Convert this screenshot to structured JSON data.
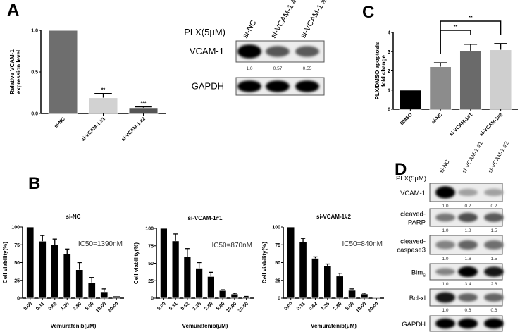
{
  "panels": {
    "a": "A",
    "b": "B",
    "c": "C",
    "d": "D"
  },
  "chart_data": [
    {
      "type": "bar",
      "panel": "A",
      "categories": [
        "si-NC",
        "si-VCAM-1 #1",
        "si-VCAM-1 #2"
      ],
      "values": [
        1.0,
        0.19,
        0.07
      ],
      "errors": [
        0,
        0.05,
        0.01
      ],
      "significance": [
        "",
        "**",
        "***"
      ],
      "ylabel_lines": [
        "Relative VCAM-1",
        "expression level"
      ],
      "ylim": [
        0,
        1.0
      ],
      "yticks": [
        "0.0",
        "0.5",
        "1.0"
      ],
      "ytick_values": [
        0,
        0.5,
        1.0
      ],
      "colors": [
        "#6e6e6e",
        "#d2d2d2",
        "#555555"
      ]
    },
    {
      "type": "bar",
      "panel": "C",
      "categories": [
        "DMSO",
        "si-NC",
        "si-VCAM-1#1",
        "si-VCAM-1#2"
      ],
      "values": [
        1.0,
        2.22,
        3.05,
        3.1
      ],
      "errors": [
        0,
        0.2,
        0.33,
        0.32
      ],
      "significance": [
        "",
        "",
        "",
        ""
      ],
      "comparisons": [
        {
          "from": "si-NC",
          "to": "si-VCAM-1#1",
          "label": "**"
        },
        {
          "from": "si-NC",
          "to": "si-VCAM-1#2",
          "label": "**"
        }
      ],
      "ylabel_lines": [
        "PLX/DMSO apoptosis",
        "fold change"
      ],
      "ylim": [
        0,
        4
      ],
      "yticks": [
        "0",
        "1",
        "2",
        "3",
        "4"
      ],
      "ytick_values": [
        0,
        1,
        2,
        3,
        4
      ],
      "colors": [
        "#000000",
        "#8c8c8c",
        "#6a6a6a",
        "#cfcfcf"
      ]
    },
    {
      "type": "bar",
      "panel": "B",
      "title": "si-NC",
      "annotation": "IC50=1390nM",
      "categories": [
        "0.00",
        "0.31",
        "0.62",
        "1.25",
        "2.50",
        "5.00",
        "10.00",
        "20.00"
      ],
      "values": [
        100,
        80,
        75,
        62,
        40,
        22,
        9,
        3
      ],
      "errors": [
        0,
        8,
        8,
        7,
        10,
        7,
        4,
        0
      ],
      "xlabel": "Vemurafenib(μM)",
      "ylabel_lines": [
        "Cell viability(%)"
      ],
      "ylim": [
        0,
        100
      ],
      "yticks": [
        "0",
        "25",
        "50",
        "75",
        "100"
      ],
      "ytick_values": [
        0,
        25,
        50,
        75,
        100
      ],
      "colors": [
        "#000000"
      ]
    },
    {
      "type": "bar",
      "panel": "B",
      "title": "si-VCAM-1#1",
      "annotation": "IC50=870nM",
      "categories": [
        "0.00",
        "0.31",
        "0.62",
        "1.25",
        "2.50",
        "5.00",
        "10.00",
        "20.00"
      ],
      "values": [
        100,
        82,
        59,
        43,
        31,
        11,
        6,
        2
      ],
      "errors": [
        0,
        10,
        12,
        8,
        6,
        1,
        1,
        0.5
      ],
      "xlabel": "Vemurafenib(μM)",
      "ylabel_lines": [
        "Cell viability(%)"
      ],
      "ylim": [
        0,
        100
      ],
      "yticks": [
        "0",
        "25",
        "50",
        "75",
        "100"
      ],
      "ytick_values": [
        0,
        25,
        50,
        75,
        100
      ],
      "colors": [
        "#000000"
      ]
    },
    {
      "type": "bar",
      "panel": "B",
      "title": "si-VCAM-1#2",
      "annotation": "IC50=840nM",
      "categories": [
        "0.00",
        "0.31",
        "0.62",
        "1.25",
        "2.50",
        "5.00",
        "10.00",
        "20.00"
      ],
      "values": [
        100,
        79,
        56,
        45,
        31,
        11,
        6,
        1
      ],
      "errors": [
        0,
        5,
        2,
        3,
        4,
        2,
        1,
        0
      ],
      "xlabel": "Vemurafenib(μM)",
      "ylabel_lines": [
        "Cell viability(%)"
      ],
      "ylim": [
        0,
        100
      ],
      "yticks": [
        "0",
        "25",
        "50",
        "75",
        "100"
      ],
      "ytick_values": [
        0,
        25,
        50,
        75,
        100
      ],
      "colors": [
        "#000000"
      ]
    }
  ],
  "blot_a": {
    "treatment": "PLX(5μM)",
    "lanes": [
      "si-NC",
      "si-VCAM-1 #1",
      "si-VCAM-1 #2"
    ],
    "rows": [
      {
        "label": "VCAM-1",
        "quant": [
          "1.0",
          "0.57",
          "0.55"
        ],
        "intensity": [
          1.0,
          0.57,
          0.55
        ]
      },
      {
        "label": "GAPDH",
        "quant": [],
        "intensity": [
          1.0,
          1.0,
          1.0
        ]
      }
    ]
  },
  "blot_d": {
    "treatment": "PLX(5μM)",
    "lanes": [
      "si-NC",
      "si-VCAM-1 #1",
      "si-VCAM-1 #2"
    ],
    "rows": [
      {
        "label": "VCAM-1",
        "label2": "",
        "quant": [
          "1.0",
          "0.2",
          "0.2"
        ],
        "intensity": [
          1.0,
          0.2,
          0.2
        ]
      },
      {
        "label": "cleaved-",
        "label2": "PARP",
        "quant": [
          "1.0",
          "1.8",
          "1.5"
        ],
        "intensity": [
          0.4,
          0.6,
          0.55
        ]
      },
      {
        "label": "cleaved-",
        "label2": "caspase3",
        "quant": [
          "1.0",
          "1.6",
          "1.5"
        ],
        "intensity": [
          0.35,
          0.5,
          0.45
        ]
      },
      {
        "label": "Bim",
        "sub": "S",
        "label2": "",
        "quant": [
          "1.0",
          "3.4",
          "2.8"
        ],
        "intensity": [
          0.35,
          1.0,
          0.9
        ]
      },
      {
        "label": "Bcl-xl",
        "label2": "",
        "quant": [
          "1.0",
          "0.6",
          "0.6"
        ],
        "intensity": [
          0.9,
          0.5,
          0.5
        ]
      },
      {
        "label": "GAPDH",
        "label2": "",
        "quant": [],
        "intensity": [
          1.0,
          1.0,
          1.0
        ]
      }
    ]
  }
}
